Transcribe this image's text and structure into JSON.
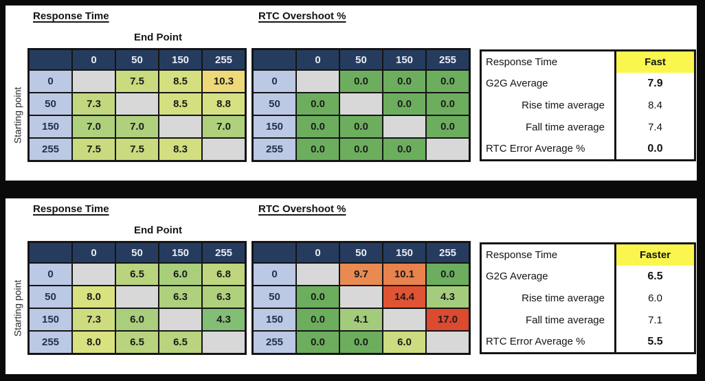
{
  "colors": {
    "frame_bg": "#0a0a0a",
    "panel_bg": "#ffffff",
    "header_bg": "#263C5F",
    "header_text": "#E9EDF4",
    "row_header_bg": "#BCC9E4",
    "diagonal_bg": "#D8D8D8",
    "accent_yellow": "#FBF64E",
    "scale_green": "#6CAE5E",
    "scale_yellow": "#EDD979",
    "scale_red": "#DC4A2F"
  },
  "labels": {
    "end_point": "End Point",
    "starting_point": "Starting point"
  },
  "panels": [
    {
      "response_time": {
        "title": "Response Time",
        "columns": [
          "0",
          "50",
          "150",
          "255"
        ],
        "rows": [
          {
            "label": "0",
            "cells": [
              null,
              {
                "v": "7.5",
                "bg": "#C9DB7F"
              },
              {
                "v": "8.5",
                "bg": "#D4DF80"
              },
              {
                "v": "10.3",
                "bg": "#EDD979"
              }
            ]
          },
          {
            "label": "50",
            "cells": [
              {
                "v": "7.3",
                "bg": "#C2D77E"
              },
              null,
              {
                "v": "8.5",
                "bg": "#D4DF80"
              },
              {
                "v": "8.8",
                "bg": "#D8E181"
              }
            ]
          },
          {
            "label": "150",
            "cells": [
              {
                "v": "7.0",
                "bg": "#AFD07D"
              },
              {
                "v": "7.0",
                "bg": "#AFD07D"
              },
              null,
              {
                "v": "7.0",
                "bg": "#AFD07D"
              }
            ]
          },
          {
            "label": "255",
            "cells": [
              {
                "v": "7.5",
                "bg": "#C9DB7F"
              },
              {
                "v": "7.5",
                "bg": "#C9DB7F"
              },
              {
                "v": "8.3",
                "bg": "#D2DE80"
              },
              null
            ]
          }
        ]
      },
      "rtc_overshoot": {
        "title": "RTC Overshoot %",
        "columns": [
          "0",
          "50",
          "150",
          "255"
        ],
        "rows": [
          {
            "label": "0",
            "cells": [
              null,
              {
                "v": "0.0",
                "bg": "#6CAE5E"
              },
              {
                "v": "0.0",
                "bg": "#6CAE5E"
              },
              {
                "v": "0.0",
                "bg": "#6CAE5E"
              }
            ]
          },
          {
            "label": "50",
            "cells": [
              {
                "v": "0.0",
                "bg": "#6CAE5E"
              },
              null,
              {
                "v": "0.0",
                "bg": "#6CAE5E"
              },
              {
                "v": "0.0",
                "bg": "#6CAE5E"
              }
            ]
          },
          {
            "label": "150",
            "cells": [
              {
                "v": "0.0",
                "bg": "#6CAE5E"
              },
              {
                "v": "0.0",
                "bg": "#6CAE5E"
              },
              null,
              {
                "v": "0.0",
                "bg": "#6CAE5E"
              }
            ]
          },
          {
            "label": "255",
            "cells": [
              {
                "v": "0.0",
                "bg": "#6CAE5E"
              },
              {
                "v": "0.0",
                "bg": "#6CAE5E"
              },
              {
                "v": "0.0",
                "bg": "#6CAE5E"
              },
              null
            ]
          }
        ]
      },
      "summary": {
        "title_label": "Response Time",
        "title_value": "Fast",
        "rows": [
          {
            "label": "G2G Average",
            "value": "7.9",
            "bold": true,
            "indent": false
          },
          {
            "label": "Rise time average",
            "value": "8.4",
            "bold": false,
            "indent": true
          },
          {
            "label": "Fall time average",
            "value": "7.4",
            "bold": false,
            "indent": true
          },
          {
            "label": "RTC Error Average %",
            "value": "0.0",
            "bold": true,
            "indent": false
          }
        ]
      }
    },
    {
      "response_time": {
        "title": "Response Time",
        "columns": [
          "0",
          "50",
          "150",
          "255"
        ],
        "rows": [
          {
            "label": "0",
            "cells": [
              null,
              {
                "v": "6.5",
                "bg": "#B9D37E"
              },
              {
                "v": "6.0",
                "bg": "#A9CE7C"
              },
              {
                "v": "6.8",
                "bg": "#BFD67F"
              }
            ]
          },
          {
            "label": "50",
            "cells": [
              {
                "v": "8.0",
                "bg": "#DAE181"
              },
              null,
              {
                "v": "6.3",
                "bg": "#AFD07D"
              },
              {
                "v": "6.3",
                "bg": "#AFD07D"
              }
            ]
          },
          {
            "label": "150",
            "cells": [
              {
                "v": "7.3",
                "bg": "#CEDC80"
              },
              {
                "v": "6.0",
                "bg": "#A9CE7C"
              },
              null,
              {
                "v": "4.3",
                "bg": "#82BE73"
              }
            ]
          },
          {
            "label": "255",
            "cells": [
              {
                "v": "8.0",
                "bg": "#DAE181"
              },
              {
                "v": "6.5",
                "bg": "#B9D37E"
              },
              {
                "v": "6.5",
                "bg": "#B9D37E"
              },
              null
            ]
          }
        ]
      },
      "rtc_overshoot": {
        "title": "RTC Overshoot %",
        "columns": [
          "0",
          "50",
          "150",
          "255"
        ],
        "rows": [
          {
            "label": "0",
            "cells": [
              null,
              {
                "v": "9.7",
                "bg": "#E98A52"
              },
              {
                "v": "10.1",
                "bg": "#E8834E"
              },
              {
                "v": "0.0",
                "bg": "#6CAE5E"
              }
            ]
          },
          {
            "label": "50",
            "cells": [
              {
                "v": "0.0",
                "bg": "#6CAE5E"
              },
              null,
              {
                "v": "14.4",
                "bg": "#DE5434"
              },
              {
                "v": "4.3",
                "bg": "#A5CC7D"
              }
            ]
          },
          {
            "label": "150",
            "cells": [
              {
                "v": "0.0",
                "bg": "#6CAE5E"
              },
              {
                "v": "4.1",
                "bg": "#A2CB7C"
              },
              null,
              {
                "v": "17.0",
                "bg": "#DC4A2F"
              }
            ]
          },
          {
            "label": "255",
            "cells": [
              {
                "v": "0.0",
                "bg": "#6CAE5E"
              },
              {
                "v": "0.0",
                "bg": "#6CAE5E"
              },
              {
                "v": "6.0",
                "bg": "#CDDC80"
              },
              null
            ]
          }
        ]
      },
      "summary": {
        "title_label": "Response Time",
        "title_value": "Faster",
        "rows": [
          {
            "label": "G2G Average",
            "value": "6.5",
            "bold": true,
            "indent": false
          },
          {
            "label": "Rise time average",
            "value": "6.0",
            "bold": false,
            "indent": true
          },
          {
            "label": "Fall time average",
            "value": "7.1",
            "bold": false,
            "indent": true
          },
          {
            "label": "RTC Error Average %",
            "value": "5.5",
            "bold": true,
            "indent": false
          }
        ]
      }
    }
  ],
  "chart_data": [
    {
      "type": "heatmap",
      "title": "Response Time",
      "group": "Fast",
      "x_label": "End Point",
      "y_label": "Starting point",
      "x_categories": [
        0,
        50,
        150,
        255
      ],
      "y_categories": [
        0,
        50,
        150,
        255
      ],
      "values": [
        [
          null,
          7.5,
          8.5,
          10.3
        ],
        [
          7.3,
          null,
          8.5,
          8.8
        ],
        [
          7.0,
          7.0,
          null,
          7.0
        ],
        [
          7.5,
          7.5,
          8.3,
          null
        ]
      ]
    },
    {
      "type": "heatmap",
      "title": "RTC Overshoot %",
      "group": "Fast",
      "x_categories": [
        0,
        50,
        150,
        255
      ],
      "y_categories": [
        0,
        50,
        150,
        255
      ],
      "values": [
        [
          null,
          0.0,
          0.0,
          0.0
        ],
        [
          0.0,
          null,
          0.0,
          0.0
        ],
        [
          0.0,
          0.0,
          null,
          0.0
        ],
        [
          0.0,
          0.0,
          0.0,
          null
        ]
      ]
    },
    {
      "type": "table",
      "title": "Response Time - Fast",
      "rows": [
        [
          "G2G Average",
          7.9
        ],
        [
          "Rise time average",
          8.4
        ],
        [
          "Fall time average",
          7.4
        ],
        [
          "RTC Error Average %",
          0.0
        ]
      ]
    },
    {
      "type": "heatmap",
      "title": "Response Time",
      "group": "Faster",
      "x_label": "End Point",
      "y_label": "Starting point",
      "x_categories": [
        0,
        50,
        150,
        255
      ],
      "y_categories": [
        0,
        50,
        150,
        255
      ],
      "values": [
        [
          null,
          6.5,
          6.0,
          6.8
        ],
        [
          8.0,
          null,
          6.3,
          6.3
        ],
        [
          7.3,
          6.0,
          null,
          4.3
        ],
        [
          8.0,
          6.5,
          6.5,
          null
        ]
      ]
    },
    {
      "type": "heatmap",
      "title": "RTC Overshoot %",
      "group": "Faster",
      "x_categories": [
        0,
        50,
        150,
        255
      ],
      "y_categories": [
        0,
        50,
        150,
        255
      ],
      "values": [
        [
          null,
          9.7,
          10.1,
          0.0
        ],
        [
          0.0,
          null,
          14.4,
          4.3
        ],
        [
          0.0,
          4.1,
          null,
          17.0
        ],
        [
          0.0,
          0.0,
          6.0,
          null
        ]
      ]
    },
    {
      "type": "table",
      "title": "Response Time - Faster",
      "rows": [
        [
          "G2G Average",
          6.5
        ],
        [
          "Rise time average",
          6.0
        ],
        [
          "Fall time average",
          7.1
        ],
        [
          "RTC Error Average %",
          5.5
        ]
      ]
    }
  ]
}
